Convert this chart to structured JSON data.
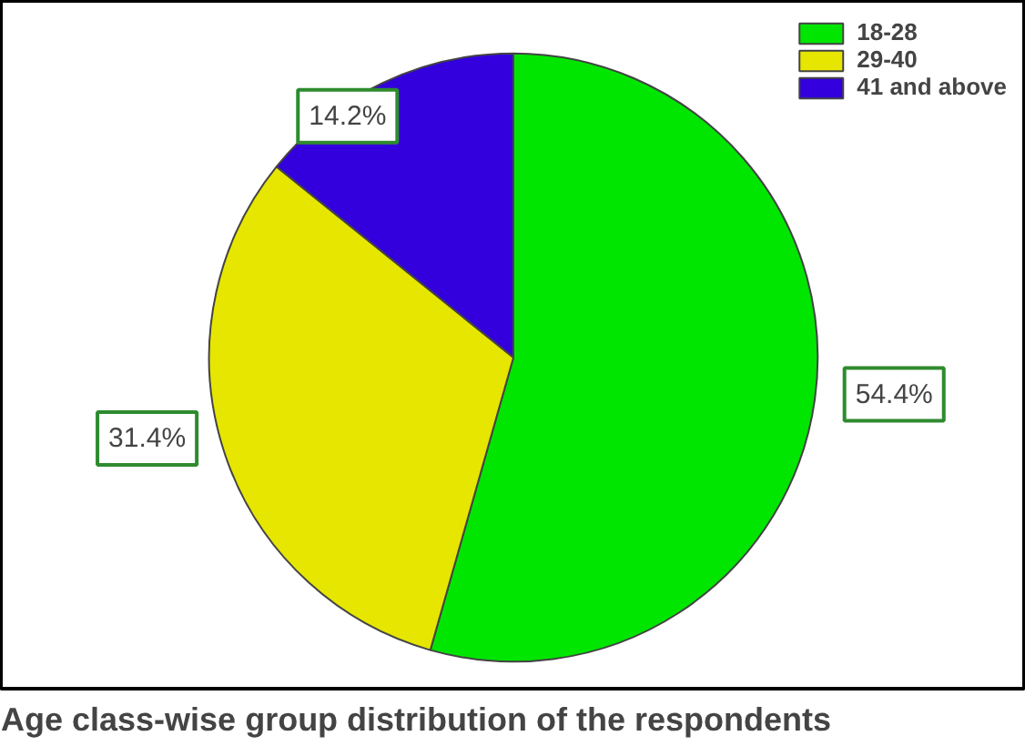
{
  "chart_data": {
    "type": "pie",
    "title": "Age class-wise group distribution of the respondents",
    "categories": [
      "18-28",
      "29-40",
      "41 and above"
    ],
    "values": [
      54.4,
      31.4,
      14.2
    ],
    "colors": [
      "#00e600",
      "#e6e600",
      "#3300dd"
    ],
    "value_labels": [
      "54.4%",
      "31.4%",
      "14.2%"
    ],
    "legend": "top right"
  }
}
